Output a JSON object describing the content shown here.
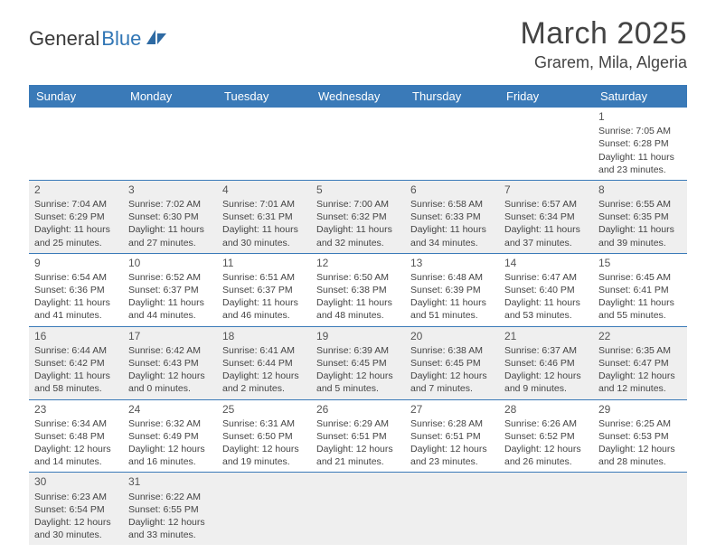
{
  "logo": {
    "part1": "General",
    "part2": "Blue"
  },
  "title": "March 2025",
  "location": "Grarem, Mila, Algeria",
  "colors": {
    "header_bg": "#3a7ab8",
    "header_fg": "#ffffff",
    "row_alt": "#efefef",
    "row_base": "#ffffff",
    "border": "#3a7ab8",
    "text": "#444444"
  },
  "dayHeaders": [
    "Sunday",
    "Monday",
    "Tuesday",
    "Wednesday",
    "Thursday",
    "Friday",
    "Saturday"
  ],
  "weeks": [
    [
      null,
      null,
      null,
      null,
      null,
      null,
      {
        "n": "1",
        "sr": "Sunrise: 7:05 AM",
        "ss": "Sunset: 6:28 PM",
        "dl": "Daylight: 11 hours and 23 minutes."
      }
    ],
    [
      {
        "n": "2",
        "sr": "Sunrise: 7:04 AM",
        "ss": "Sunset: 6:29 PM",
        "dl": "Daylight: 11 hours and 25 minutes."
      },
      {
        "n": "3",
        "sr": "Sunrise: 7:02 AM",
        "ss": "Sunset: 6:30 PM",
        "dl": "Daylight: 11 hours and 27 minutes."
      },
      {
        "n": "4",
        "sr": "Sunrise: 7:01 AM",
        "ss": "Sunset: 6:31 PM",
        "dl": "Daylight: 11 hours and 30 minutes."
      },
      {
        "n": "5",
        "sr": "Sunrise: 7:00 AM",
        "ss": "Sunset: 6:32 PM",
        "dl": "Daylight: 11 hours and 32 minutes."
      },
      {
        "n": "6",
        "sr": "Sunrise: 6:58 AM",
        "ss": "Sunset: 6:33 PM",
        "dl": "Daylight: 11 hours and 34 minutes."
      },
      {
        "n": "7",
        "sr": "Sunrise: 6:57 AM",
        "ss": "Sunset: 6:34 PM",
        "dl": "Daylight: 11 hours and 37 minutes."
      },
      {
        "n": "8",
        "sr": "Sunrise: 6:55 AM",
        "ss": "Sunset: 6:35 PM",
        "dl": "Daylight: 11 hours and 39 minutes."
      }
    ],
    [
      {
        "n": "9",
        "sr": "Sunrise: 6:54 AM",
        "ss": "Sunset: 6:36 PM",
        "dl": "Daylight: 11 hours and 41 minutes."
      },
      {
        "n": "10",
        "sr": "Sunrise: 6:52 AM",
        "ss": "Sunset: 6:37 PM",
        "dl": "Daylight: 11 hours and 44 minutes."
      },
      {
        "n": "11",
        "sr": "Sunrise: 6:51 AM",
        "ss": "Sunset: 6:37 PM",
        "dl": "Daylight: 11 hours and 46 minutes."
      },
      {
        "n": "12",
        "sr": "Sunrise: 6:50 AM",
        "ss": "Sunset: 6:38 PM",
        "dl": "Daylight: 11 hours and 48 minutes."
      },
      {
        "n": "13",
        "sr": "Sunrise: 6:48 AM",
        "ss": "Sunset: 6:39 PM",
        "dl": "Daylight: 11 hours and 51 minutes."
      },
      {
        "n": "14",
        "sr": "Sunrise: 6:47 AM",
        "ss": "Sunset: 6:40 PM",
        "dl": "Daylight: 11 hours and 53 minutes."
      },
      {
        "n": "15",
        "sr": "Sunrise: 6:45 AM",
        "ss": "Sunset: 6:41 PM",
        "dl": "Daylight: 11 hours and 55 minutes."
      }
    ],
    [
      {
        "n": "16",
        "sr": "Sunrise: 6:44 AM",
        "ss": "Sunset: 6:42 PM",
        "dl": "Daylight: 11 hours and 58 minutes."
      },
      {
        "n": "17",
        "sr": "Sunrise: 6:42 AM",
        "ss": "Sunset: 6:43 PM",
        "dl": "Daylight: 12 hours and 0 minutes."
      },
      {
        "n": "18",
        "sr": "Sunrise: 6:41 AM",
        "ss": "Sunset: 6:44 PM",
        "dl": "Daylight: 12 hours and 2 minutes."
      },
      {
        "n": "19",
        "sr": "Sunrise: 6:39 AM",
        "ss": "Sunset: 6:45 PM",
        "dl": "Daylight: 12 hours and 5 minutes."
      },
      {
        "n": "20",
        "sr": "Sunrise: 6:38 AM",
        "ss": "Sunset: 6:45 PM",
        "dl": "Daylight: 12 hours and 7 minutes."
      },
      {
        "n": "21",
        "sr": "Sunrise: 6:37 AM",
        "ss": "Sunset: 6:46 PM",
        "dl": "Daylight: 12 hours and 9 minutes."
      },
      {
        "n": "22",
        "sr": "Sunrise: 6:35 AM",
        "ss": "Sunset: 6:47 PM",
        "dl": "Daylight: 12 hours and 12 minutes."
      }
    ],
    [
      {
        "n": "23",
        "sr": "Sunrise: 6:34 AM",
        "ss": "Sunset: 6:48 PM",
        "dl": "Daylight: 12 hours and 14 minutes."
      },
      {
        "n": "24",
        "sr": "Sunrise: 6:32 AM",
        "ss": "Sunset: 6:49 PM",
        "dl": "Daylight: 12 hours and 16 minutes."
      },
      {
        "n": "25",
        "sr": "Sunrise: 6:31 AM",
        "ss": "Sunset: 6:50 PM",
        "dl": "Daylight: 12 hours and 19 minutes."
      },
      {
        "n": "26",
        "sr": "Sunrise: 6:29 AM",
        "ss": "Sunset: 6:51 PM",
        "dl": "Daylight: 12 hours and 21 minutes."
      },
      {
        "n": "27",
        "sr": "Sunrise: 6:28 AM",
        "ss": "Sunset: 6:51 PM",
        "dl": "Daylight: 12 hours and 23 minutes."
      },
      {
        "n": "28",
        "sr": "Sunrise: 6:26 AM",
        "ss": "Sunset: 6:52 PM",
        "dl": "Daylight: 12 hours and 26 minutes."
      },
      {
        "n": "29",
        "sr": "Sunrise: 6:25 AM",
        "ss": "Sunset: 6:53 PM",
        "dl": "Daylight: 12 hours and 28 minutes."
      }
    ],
    [
      {
        "n": "30",
        "sr": "Sunrise: 6:23 AM",
        "ss": "Sunset: 6:54 PM",
        "dl": "Daylight: 12 hours and 30 minutes."
      },
      {
        "n": "31",
        "sr": "Sunrise: 6:22 AM",
        "ss": "Sunset: 6:55 PM",
        "dl": "Daylight: 12 hours and 33 minutes."
      },
      null,
      null,
      null,
      null,
      null
    ]
  ]
}
